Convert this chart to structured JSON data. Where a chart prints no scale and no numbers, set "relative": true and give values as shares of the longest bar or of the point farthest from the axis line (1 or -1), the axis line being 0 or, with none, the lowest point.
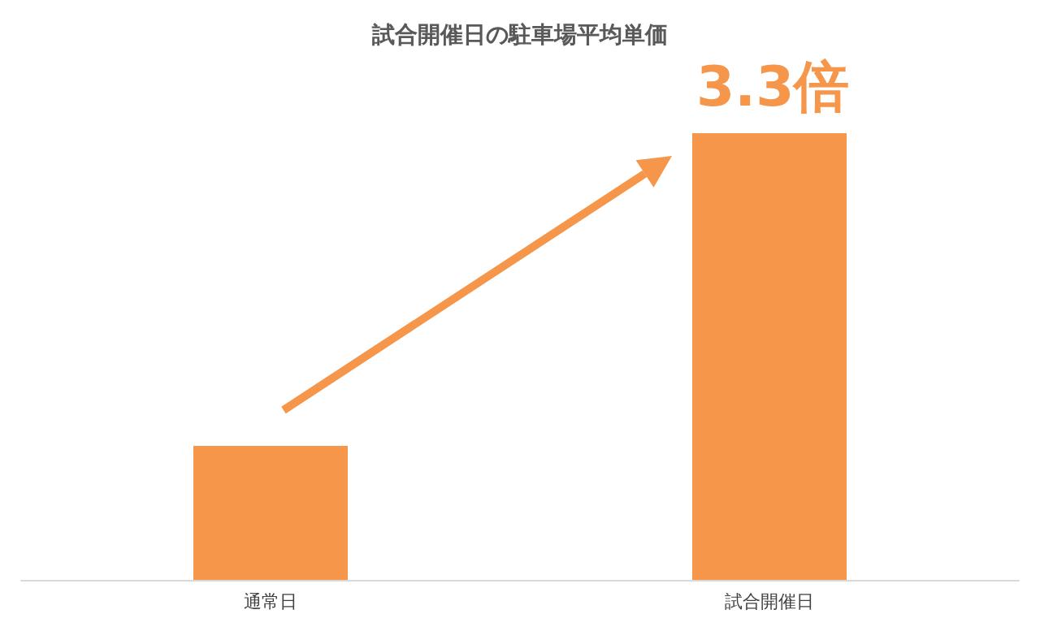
{
  "chart_data": {
    "type": "bar",
    "title": "試合開催日の駐車場平均単価",
    "categories": [
      "通常日",
      "試合開催日"
    ],
    "values": [
      0.3,
      1
    ],
    "color": "#f5964a",
    "relative": true,
    "annotations": [
      "3.3倍"
    ]
  }
}
